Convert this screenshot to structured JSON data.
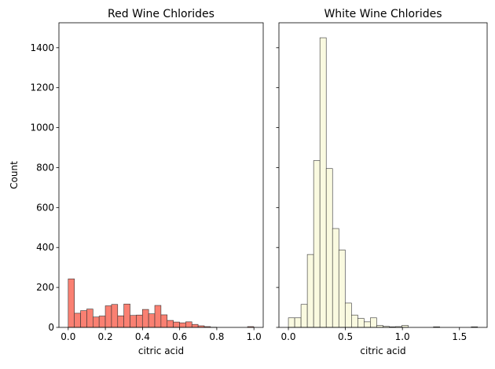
{
  "chart_data": [
    {
      "type": "histogram",
      "title": "Red Wine Chlorides",
      "xlabel": "citric acid",
      "ylabel": "Count",
      "xlim": [
        -0.05,
        1.05
      ],
      "ylim": [
        0,
        1525
      ],
      "xticks": [
        0.0,
        0.2,
        0.4,
        0.6,
        0.8,
        1.0
      ],
      "xtick_labels": [
        "0.0",
        "0.2",
        "0.4",
        "0.6",
        "0.8",
        "1.0"
      ],
      "yticks": [
        0,
        200,
        400,
        600,
        800,
        1000,
        1200,
        1400
      ],
      "ytick_labels": [
        "0",
        "200",
        "400",
        "600",
        "800",
        "1000",
        "1200",
        "1400"
      ],
      "bin_start": 0.0,
      "bin_width": 0.0333,
      "values": [
        243,
        71,
        84,
        92,
        52,
        57,
        108,
        115,
        58,
        117,
        60,
        62,
        90,
        68,
        110,
        63,
        35,
        27,
        23,
        28,
        15,
        8,
        4,
        1,
        0,
        0,
        0,
        0,
        0,
        4
      ],
      "fill": "#fa8072",
      "edge": "#333333"
    },
    {
      "type": "histogram",
      "title": "White Wine Chlorides",
      "xlabel": "citric acid",
      "ylabel": "",
      "xlim": [
        -0.083,
        1.743
      ],
      "ylim": [
        0,
        1525
      ],
      "xticks": [
        0.0,
        0.5,
        1.0,
        1.5
      ],
      "xtick_labels": [
        "0.0",
        "0.5",
        "1.0",
        "1.5"
      ],
      "yticks": [
        0,
        200,
        400,
        600,
        800,
        1000,
        1200,
        1400
      ],
      "ytick_labels": [],
      "bin_start": 0.0,
      "bin_width": 0.0553,
      "values": [
        48,
        48,
        115,
        365,
        835,
        1450,
        795,
        495,
        388,
        122,
        62,
        45,
        28,
        48,
        10,
        5,
        3,
        4,
        10,
        0,
        0,
        0,
        0,
        3,
        0,
        0,
        0,
        0,
        0,
        3
      ],
      "fill": "#fafae0",
      "edge": "#333333"
    }
  ]
}
